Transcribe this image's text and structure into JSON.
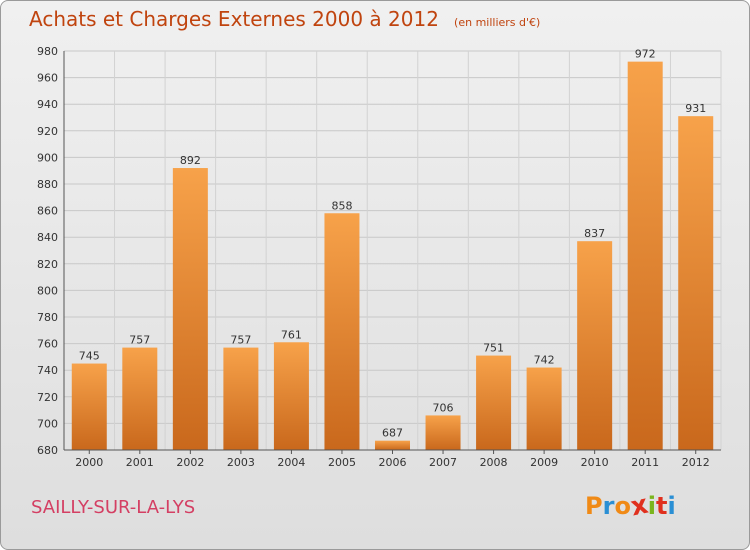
{
  "header": {
    "title": "Achats et Charges Externes 2000 à 2012",
    "unit": "(en milliers d'€)"
  },
  "footer": {
    "city": "SAILLY-SUR-LA-LYS",
    "logo_letters": [
      "P",
      "r",
      "o",
      "x",
      "i",
      "t",
      "i"
    ],
    "logo_colors": [
      "#f08a16",
      "#2a8fd4",
      "#f08a16",
      "#e0301e",
      "#7ab51d",
      "#e0301e",
      "#2a8fd4"
    ]
  },
  "colors": {
    "bar_light": "#f7a24a",
    "bar_dark": "#c9681c",
    "title": "#c0440f",
    "city": "#d43f63"
  },
  "chart_data": {
    "type": "bar",
    "title": "Achats et Charges Externes 2000 à 2012",
    "subtitle": "(en milliers d'€)",
    "categories": [
      "2000",
      "2001",
      "2002",
      "2003",
      "2004",
      "2005",
      "2006",
      "2007",
      "2008",
      "2009",
      "2010",
      "2011",
      "2012"
    ],
    "values": [
      745,
      757,
      892,
      757,
      761,
      858,
      687,
      706,
      751,
      742,
      837,
      972,
      931
    ],
    "ylim": [
      680,
      980
    ],
    "yticks": [
      680,
      700,
      720,
      740,
      760,
      780,
      800,
      820,
      840,
      860,
      880,
      900,
      920,
      940,
      960,
      980
    ],
    "grid": true,
    "legend": "none"
  }
}
